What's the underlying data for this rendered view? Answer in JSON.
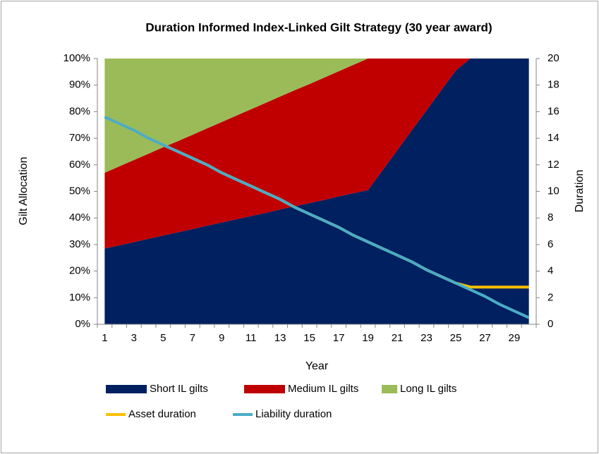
{
  "chart_data": {
    "type": "area",
    "title": "Duration Informed Index-Linked Gilt Strategy (30 year award)",
    "x_label": "Year",
    "y_label": "Gilt Allocation",
    "y2_label": "Duration",
    "categories": [
      1,
      null,
      3,
      null,
      5,
      null,
      7,
      null,
      9,
      null,
      11,
      null,
      13,
      null,
      15,
      null,
      17,
      null,
      19,
      null,
      21,
      null,
      23,
      null,
      25,
      null,
      27,
      null,
      29,
      null
    ],
    "ylim": [
      0,
      100
    ],
    "yticks": [
      {
        "value": 0,
        "label": "0%"
      },
      {
        "value": 10,
        "label": "10%"
      },
      {
        "value": 20,
        "label": "20%"
      },
      {
        "value": 30,
        "label": "30%"
      },
      {
        "value": 40,
        "label": "40%"
      },
      {
        "value": 50,
        "label": "50%"
      },
      {
        "value": 60,
        "label": "60%"
      },
      {
        "value": 70,
        "label": "70%"
      },
      {
        "value": 80,
        "label": "80%"
      },
      {
        "value": 90,
        "label": "90%"
      },
      {
        "value": 100,
        "label": "100%"
      }
    ],
    "y2lim": [
      0,
      20
    ],
    "y2ticks": [
      0,
      2,
      4,
      6,
      8,
      10,
      12,
      14,
      16,
      18,
      20
    ],
    "series": [
      {
        "name": "Short IL gilts",
        "color": "#002060",
        "type": "area",
        "values": [
          28.5,
          29.7,
          30.9,
          32.2,
          33.4,
          34.6,
          35.8,
          37.1,
          38.3,
          39.5,
          40.7,
          41.9,
          43.2,
          44.4,
          45.6,
          46.8,
          48.1,
          49.3,
          50.5,
          58,
          65.5,
          73,
          80.5,
          88,
          95.5,
          100,
          100,
          100,
          100,
          100
        ]
      },
      {
        "name": "Medium IL gilts",
        "color": "#c00000",
        "type": "area",
        "values": [
          28.5,
          29.7,
          30.9,
          32.0,
          33.2,
          34.3,
          35.5,
          36.6,
          37.8,
          39.0,
          40.2,
          41.4,
          42.5,
          43.7,
          44.8,
          46.0,
          47.1,
          48.3,
          49.5,
          42,
          34.5,
          27,
          19.5,
          12,
          4.5,
          0,
          0,
          0,
          0,
          0
        ]
      },
      {
        "name": "Long IL gilts",
        "color": "#9bbb59",
        "type": "area",
        "values": [
          43,
          40.6,
          38.2,
          35.8,
          33.4,
          31.1,
          28.7,
          26.3,
          23.9,
          21.5,
          19.1,
          16.7,
          14.3,
          11.9,
          9.6,
          7.2,
          4.8,
          2.4,
          0,
          0,
          0,
          0,
          0,
          0,
          0,
          0,
          0,
          0,
          0,
          0
        ]
      },
      {
        "name": "Asset duration",
        "color": "#ffc000",
        "type": "line",
        "axis": "y2",
        "values": [
          15.6,
          15.1,
          14.6,
          14.0,
          13.5,
          13.0,
          12.5,
          12.0,
          11.4,
          10.9,
          10.4,
          9.9,
          9.4,
          8.8,
          8.3,
          7.8,
          7.3,
          6.7,
          6.2,
          5.7,
          5.2,
          4.7,
          4.1,
          3.6,
          3.1,
          2.8,
          2.8,
          2.8,
          2.8,
          2.8
        ]
      },
      {
        "name": "Liability duration",
        "color": "#4bacc6",
        "type": "line",
        "axis": "y2",
        "values": [
          15.6,
          15.1,
          14.6,
          14.0,
          13.5,
          13.0,
          12.5,
          12.0,
          11.4,
          10.9,
          10.4,
          9.9,
          9.4,
          8.8,
          8.3,
          7.8,
          7.3,
          6.7,
          6.2,
          5.7,
          5.2,
          4.7,
          4.1,
          3.6,
          3.1,
          2.6,
          2.1,
          1.5,
          1.0,
          0.5
        ]
      }
    ]
  }
}
